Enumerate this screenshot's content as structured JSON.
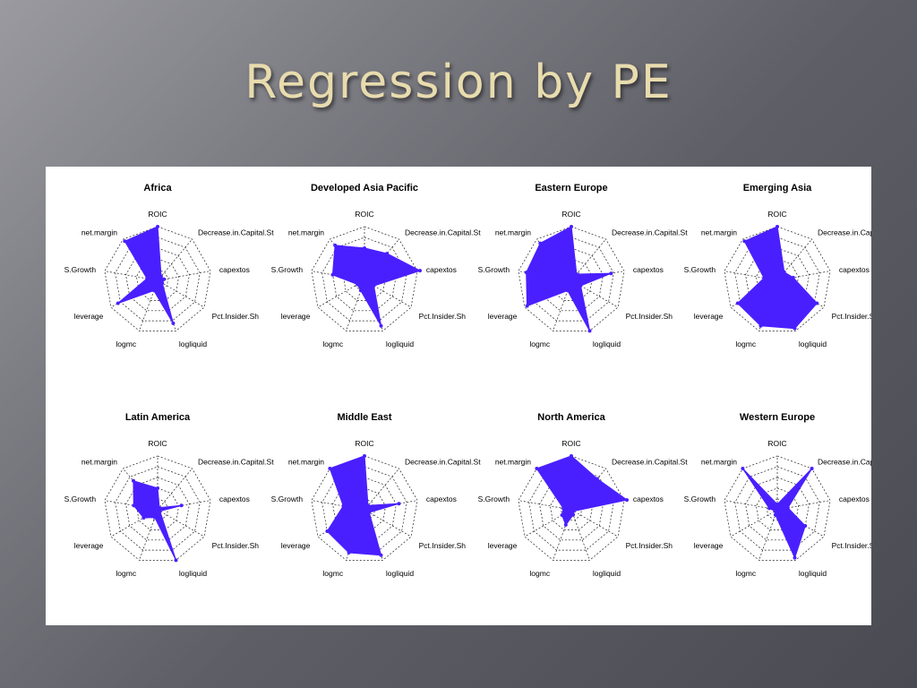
{
  "slide": {
    "title": "Regression by PE"
  },
  "axis_labels": [
    "ROIC",
    "Decrease.in.Capital.St",
    "capextos",
    "Pct.Insider.Sh",
    "logliquid",
    "logmc",
    "leverage",
    "S.Growth",
    "net.margin"
  ],
  "colors": {
    "fill": "#4a1fff",
    "grid": "#222222"
  },
  "chart_data": [
    {
      "type": "radar",
      "title": "Africa",
      "axes": [
        "ROIC",
        "Decrease.in.Capital.St",
        "capextos",
        "Pct.Insider.Sh",
        "logliquid",
        "logmc",
        "leverage",
        "S.Growth",
        "net.margin"
      ],
      "values": [
        1.0,
        0.1,
        0.12,
        0.1,
        0.85,
        0.2,
        0.85,
        0.2,
        0.95
      ]
    },
    {
      "type": "radar",
      "title": "Developed Asia Pacific",
      "axes": [
        "ROIC",
        "Decrease.in.Capital.St",
        "capextos",
        "Pct.Insider.Sh",
        "logliquid",
        "logmc",
        "leverage",
        "S.Growth",
        "net.margin"
      ],
      "values": [
        0.6,
        0.65,
        1.05,
        0.2,
        0.9,
        0.2,
        0.15,
        0.6,
        0.85
      ]
    },
    {
      "type": "radar",
      "title": "Eastern Europe",
      "axes": [
        "ROIC",
        "Decrease.in.Capital.St",
        "capextos",
        "Pct.Insider.Sh",
        "logliquid",
        "logmc",
        "leverage",
        "S.Growth",
        "net.margin"
      ],
      "values": [
        1.0,
        0.15,
        0.75,
        0.2,
        1.0,
        0.2,
        0.95,
        0.85,
        0.9
      ]
    },
    {
      "type": "radar",
      "title": "Emerging Asia",
      "axes": [
        "ROIC",
        "Decrease.in.Capital.St",
        "capextos",
        "Pct.Insider.Sh",
        "logliquid",
        "logmc",
        "leverage",
        "S.Growth",
        "net.margin"
      ],
      "values": [
        1.0,
        0.2,
        0.3,
        0.85,
        0.95,
        0.9,
        0.85,
        0.25,
        0.95
      ]
    },
    {
      "type": "radar",
      "title": "Latin America",
      "axes": [
        "ROIC",
        "Decrease.in.Capital.St",
        "capextos",
        "Pct.Insider.Sh",
        "logliquid",
        "logmc",
        "leverage",
        "S.Growth",
        "net.margin"
      ],
      "values": [
        0.4,
        0.05,
        0.45,
        0.05,
        1.0,
        0.15,
        0.3,
        0.45,
        0.7
      ]
    },
    {
      "type": "radar",
      "title": "Middle East",
      "axes": [
        "ROIC",
        "Decrease.in.Capital.St",
        "capextos",
        "Pct.Insider.Sh",
        "logliquid",
        "logmc",
        "leverage",
        "S.Growth",
        "net.margin"
      ],
      "values": [
        1.0,
        0.1,
        0.65,
        0.1,
        0.9,
        0.85,
        0.8,
        0.4,
        1.0
      ]
    },
    {
      "type": "radar",
      "title": "North America",
      "axes": [
        "ROIC",
        "Decrease.in.Capital.St",
        "capextos",
        "Pct.Insider.Sh",
        "logliquid",
        "logmc",
        "leverage",
        "S.Growth",
        "net.margin"
      ],
      "values": [
        1.0,
        0.75,
        1.05,
        0.05,
        0.1,
        0.3,
        0.2,
        0.15,
        1.0
      ]
    },
    {
      "type": "radar",
      "title": "Western Europe",
      "axes": [
        "ROIC",
        "Decrease.in.Capital.St",
        "capextos",
        "Pct.Insider.Sh",
        "logliquid",
        "logmc",
        "leverage",
        "S.Growth",
        "net.margin"
      ],
      "values": [
        0.1,
        1.0,
        0.2,
        0.6,
        0.95,
        0.1,
        0.05,
        0.15,
        1.0
      ]
    }
  ]
}
